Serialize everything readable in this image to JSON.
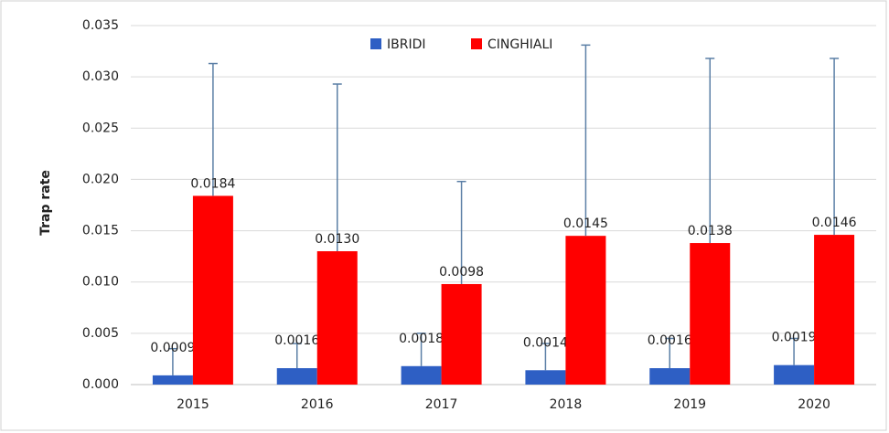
{
  "chart_data": {
    "type": "bar",
    "ylabel": "Trap rate",
    "categories": [
      "2015",
      "2016",
      "2017",
      "2018",
      "2019",
      "2020"
    ],
    "series": [
      {
        "name": "IBRIDI",
        "color": "#2e5fc4",
        "values": [
          0.0009,
          0.0016,
          0.0018,
          0.0014,
          0.0016,
          0.0019
        ],
        "value_labels": [
          "0.0009",
          "0.0016",
          "0.0018",
          "0.0014",
          "0.0016",
          "0.0019"
        ],
        "errors": [
          0.0026,
          0.0024,
          0.0032,
          0.0026,
          0.0029,
          0.0026
        ]
      },
      {
        "name": "CINGHIALI",
        "color": "#ff0000",
        "values": [
          0.0184,
          0.013,
          0.0098,
          0.0145,
          0.0138,
          0.0146
        ],
        "value_labels": [
          "0.0184",
          "0.0130",
          "0.0098",
          "0.0145",
          "0.0138",
          "0.0146"
        ],
        "errors": [
          0.0129,
          0.0163,
          0.01,
          0.0186,
          0.018,
          0.0172
        ]
      }
    ],
    "ylim": [
      0,
      0.035
    ],
    "yticks": [
      {
        "value": 0,
        "label": "0.000"
      },
      {
        "value": 0.005,
        "label": "0.005"
      },
      {
        "value": 0.01,
        "label": "0.010"
      },
      {
        "value": 0.015,
        "label": "0.015"
      },
      {
        "value": 0.02,
        "label": "0.020"
      },
      {
        "value": 0.025,
        "label": "0.025"
      },
      {
        "value": 0.03,
        "label": "0.030"
      },
      {
        "value": 0.035,
        "label": "0.035"
      }
    ],
    "grid": true,
    "legend": "top"
  }
}
